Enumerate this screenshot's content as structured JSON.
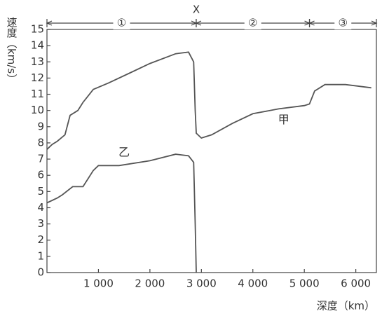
{
  "chart_data": {
    "type": "line",
    "x_label": "深度（km）",
    "y_label": "速度（km/s）",
    "xlim": [
      0,
      6400
    ],
    "ylim": [
      0,
      15
    ],
    "xticks": [
      {
        "value": 1000,
        "label": "1 000"
      },
      {
        "value": 2000,
        "label": "2 000"
      },
      {
        "value": 3000,
        "label": "3 000"
      },
      {
        "value": 4000,
        "label": "4 000"
      },
      {
        "value": 5000,
        "label": "5 000"
      },
      {
        "value": 6000,
        "label": "6 000"
      }
    ],
    "yticks": [
      0,
      1,
      2,
      3,
      4,
      5,
      6,
      7,
      8,
      9,
      10,
      11,
      12,
      13,
      14,
      15
    ],
    "boundary": {
      "value": 2900,
      "label": "X"
    },
    "layers": [
      {
        "label": "①",
        "start": 0,
        "end": 2900
      },
      {
        "label": "②",
        "start": 2900,
        "end": 5100
      },
      {
        "label": "③",
        "start": 5100,
        "end": 6400
      }
    ],
    "series": [
      {
        "name": "甲",
        "color": "#555555",
        "label_x": 4600,
        "label_y": 9.4,
        "x": [
          0,
          100,
          200,
          350,
          450,
          600,
          700,
          900,
          1200,
          1600,
          2000,
          2500,
          2750,
          2850,
          2880,
          2900,
          3000,
          3200,
          3600,
          4000,
          4500,
          5000,
          5100,
          5200,
          5400,
          5800,
          6300
        ],
        "values": [
          7.6,
          7.9,
          8.1,
          8.5,
          9.7,
          10.0,
          10.5,
          11.3,
          11.7,
          12.3,
          12.9,
          13.5,
          13.6,
          13.0,
          10.0,
          8.6,
          8.3,
          8.5,
          9.2,
          9.8,
          10.1,
          10.3,
          10.4,
          11.2,
          11.6,
          11.6,
          11.4
        ]
      },
      {
        "name": "乙",
        "color": "#555555",
        "label_x": 1500,
        "label_y": 7.4,
        "x": [
          0,
          200,
          300,
          500,
          700,
          900,
          1000,
          1400,
          2000,
          2500,
          2750,
          2850,
          2880,
          2900
        ],
        "values": [
          4.3,
          4.6,
          4.8,
          5.3,
          5.3,
          6.3,
          6.6,
          6.6,
          6.9,
          7.3,
          7.2,
          6.8,
          3.0,
          0
        ]
      }
    ]
  }
}
